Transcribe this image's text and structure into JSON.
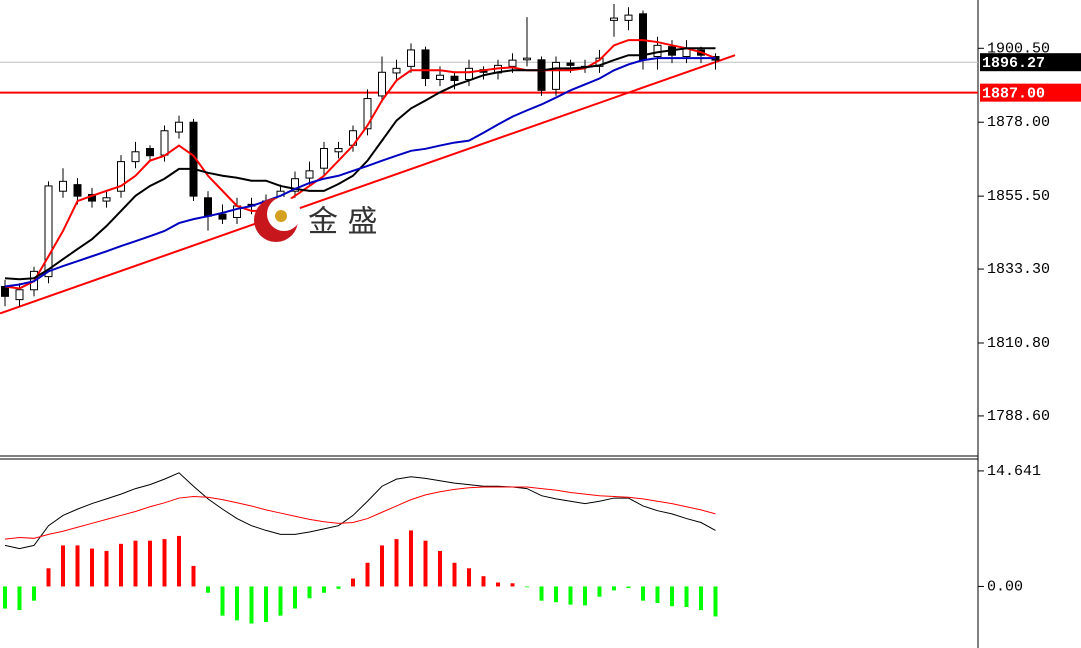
{
  "chart_data": [
    {
      "type": "candlestick",
      "open": [
        1828,
        1824,
        1827,
        1831,
        1857,
        1859,
        1856,
        1854,
        1857,
        1866,
        1870,
        1868,
        1875,
        1878,
        1855,
        1850,
        1849,
        1853,
        1852,
        1854,
        1857,
        1861,
        1864,
        1869,
        1871,
        1876,
        1886,
        1893,
        1895,
        1900,
        1891,
        1892,
        1891,
        1894,
        1893,
        1895,
        1897,
        1897,
        1888,
        1896,
        1895,
        1895,
        1909,
        1909,
        1911,
        1898,
        1901,
        1898,
        1900,
        1898
      ],
      "high": [
        1830,
        1829,
        1834,
        1860,
        1864,
        1861,
        1858,
        1857,
        1868,
        1872,
        1871,
        1877,
        1880,
        1879,
        1857,
        1853,
        1855,
        1855,
        1856,
        1859,
        1863,
        1866,
        1872,
        1872,
        1877,
        1888,
        1898,
        1897,
        1902,
        1901,
        1895,
        1893,
        1897,
        1895,
        1897,
        1899,
        1910,
        1898,
        1898,
        1897,
        1897,
        1900,
        1914,
        1913,
        1912,
        1904,
        1903,
        1903,
        1901,
        1899
      ],
      "low": [
        1822,
        1822,
        1825,
        1829,
        1855,
        1853,
        1852,
        1852,
        1855,
        1864,
        1866,
        1866,
        1873,
        1854,
        1845,
        1847,
        1847,
        1850,
        1851,
        1852,
        1855,
        1859,
        1862,
        1867,
        1869,
        1874,
        1884,
        1891,
        1893,
        1889,
        1889,
        1888,
        1889,
        1891,
        1891,
        1893,
        1895,
        1886,
        1886,
        1893,
        1893,
        1893,
        1904,
        1906,
        1894,
        1894,
        1896,
        1896,
        1896,
        1894
      ],
      "close": [
        1825,
        1827,
        1832.6,
        1858.6,
        1860,
        1855.5,
        1854,
        1855,
        1866,
        1869,
        1867.8,
        1875.4,
        1878,
        1855.5,
        1849.4,
        1848.5,
        1852.5,
        1852.5,
        1854,
        1857,
        1860.8,
        1863.2,
        1870,
        1870,
        1875.4,
        1885.2,
        1893.2,
        1894.4,
        1900,
        1891.3,
        1892.3,
        1890.7,
        1894.4,
        1893.2,
        1895.3,
        1896.9,
        1897.5,
        1887.7,
        1896.2,
        1895.3,
        1895,
        1897.5,
        1909.7,
        1910.6,
        1896.9,
        1901.4,
        1898.4,
        1900.5,
        1898.4,
        1896.9
      ],
      "up_color": "#ffffff",
      "down_color": "#000000",
      "outline_color": "#000000",
      "moving_averages": [
        {
          "color": "#ff0000",
          "values": [
            1828,
            1827.4,
            1829.6,
            1837.2,
            1844.9,
            1854,
            1855.6,
            1857.1,
            1858.6,
            1861.7,
            1866.3,
            1867.8,
            1870.9,
            1867.8,
            1861.7,
            1857.1,
            1852.5,
            1851,
            1851,
            1852.5,
            1855.6,
            1858.6,
            1861.7,
            1866.3,
            1870.9,
            1877,
            1884.6,
            1890.7,
            1893.8,
            1893.8,
            1893.8,
            1893.2,
            1893.2,
            1893.8,
            1894.4,
            1894.7,
            1893.8,
            1893.8,
            1893.8,
            1893.8,
            1894.4,
            1896.9,
            1901.4,
            1903,
            1903,
            1902.4,
            1901.4,
            1900.5,
            1899.3,
            1897.5
          ]
        },
        {
          "color": "#000000",
          "values": [
            1830.5,
            1830.2,
            1830.5,
            1833.2,
            1836.3,
            1839.4,
            1842.4,
            1846.4,
            1851,
            1855.6,
            1858.6,
            1860.8,
            1863.8,
            1863.8,
            1862.6,
            1861.7,
            1861.1,
            1860.2,
            1860.2,
            1858.6,
            1857.7,
            1857.1,
            1857.1,
            1859.2,
            1861.7,
            1866.3,
            1872.4,
            1878.5,
            1882.2,
            1884.6,
            1887.1,
            1889.2,
            1890.7,
            1892.3,
            1893.2,
            1893.8,
            1893.8,
            1893.8,
            1894.4,
            1894.4,
            1894.7,
            1895.3,
            1896.9,
            1898.4,
            1898.4,
            1899.3,
            1899.9,
            1900.5,
            1900.5,
            1900.5
          ]
        },
        {
          "color": "#0000c0",
          "values": [
            1828,
            1828.6,
            1829.6,
            1832.6,
            1834.2,
            1835.7,
            1837.2,
            1838.7,
            1840.3,
            1841.8,
            1843.3,
            1844.9,
            1847.3,
            1848.5,
            1849.4,
            1850.4,
            1851.6,
            1852.5,
            1854,
            1855.6,
            1857.7,
            1859.5,
            1860.8,
            1861.7,
            1863.2,
            1864.7,
            1866.3,
            1867.8,
            1869.3,
            1869.9,
            1870.9,
            1871.8,
            1872.4,
            1874.8,
            1877.3,
            1879.7,
            1881.6,
            1883.4,
            1885.5,
            1887.7,
            1889.5,
            1891.3,
            1893.8,
            1895.6,
            1896.9,
            1897.5,
            1897.5,
            1897.5,
            1897.5,
            1897.5
          ]
        }
      ],
      "trendline": {
        "color": "#ff0000",
        "x": [
          -0.34,
          50.35
        ],
        "values": [
          1819.8,
          1898.4
        ]
      },
      "hlines": [
        1896.27,
        {
          "value": 1887,
          "label": "1887.00"
        }
      ],
      "hline_colors": [
        "#c0c0c0",
        "#ff0000"
      ],
      "hline_label_colors": [
        "#000000",
        "#ff0000"
      ],
      "ylim": [
        1776.4,
        1915.2
      ],
      "yticks": [
        {
          "value": 1900.5,
          "label": "1900.50"
        },
        {
          "value": 1878,
          "label": "1878.00"
        },
        {
          "value": 1855.5,
          "label": "1855.50"
        },
        {
          "value": 1833.3,
          "label": "1833.30"
        },
        {
          "value": 1810.8,
          "label": "1810.80"
        },
        {
          "value": 1788.6,
          "label": "1788.60"
        }
      ],
      "watermark": "金 盛"
    },
    {
      "type": "macd",
      "values": [
        -2.8,
        -3,
        -1.8,
        2.3,
        5.2,
        5.2,
        4.8,
        4.5,
        5.4,
        5.8,
        5.8,
        6,
        6.4,
        2.6,
        -0.8,
        -3.7,
        -4.3,
        -4.7,
        -4.5,
        -3.7,
        -2.8,
        -1.5,
        -0.8,
        -0.3,
        1,
        3,
        5.2,
        6,
        7.1,
        5.8,
        4.5,
        3,
        2.3,
        1.3,
        0.5,
        0.4,
        -0.1,
        -1.8,
        -2,
        -2.3,
        -2.4,
        -1.3,
        -0.5,
        -0.2,
        -1.8,
        -2.1,
        -2.5,
        -2.6,
        -3,
        -3.8
      ],
      "up_color": "#ff0000",
      "down_color": "#00ff00",
      "series": [
        {
          "color": "#000000",
          "values": [
            5.2,
            4.8,
            5.2,
            7.7,
            9,
            9.8,
            10.5,
            11.1,
            11.7,
            12.4,
            12.9,
            13.6,
            14.4,
            12.7,
            11.1,
            9.8,
            8.6,
            7.7,
            7.1,
            6.6,
            6.6,
            6.9,
            7.3,
            7.7,
            9,
            10.8,
            12.7,
            13.6,
            13.9,
            13.7,
            13.4,
            13.1,
            12.9,
            12.7,
            12.7,
            12.6,
            12.4,
            11.5,
            11.1,
            10.8,
            10.5,
            10.8,
            11.2,
            11.2,
            10.2,
            9.6,
            9.2,
            8.6,
            8.1,
            7.1
          ]
        },
        {
          "color": "#ff0000",
          "values": [
            6,
            6.2,
            6.1,
            6.6,
            7,
            7.5,
            8,
            8.5,
            9,
            9.5,
            10.1,
            10.6,
            11.2,
            11.4,
            11.3,
            11,
            10.6,
            10.2,
            9.7,
            9.3,
            8.9,
            8.5,
            8.2,
            8,
            8.1,
            8.6,
            9.4,
            10.2,
            11,
            11.6,
            12,
            12.3,
            12.5,
            12.6,
            12.6,
            12.6,
            12.6,
            12.4,
            12.2,
            11.9,
            11.7,
            11.5,
            11.4,
            11.3,
            11.1,
            10.8,
            10.5,
            10.1,
            9.7,
            9.2
          ]
        }
      ],
      "ylim": [
        -7.8,
        16.15
      ],
      "yticks": [
        14.641,
        {
          "value": 0,
          "label": "0.00"
        }
      ]
    }
  ]
}
